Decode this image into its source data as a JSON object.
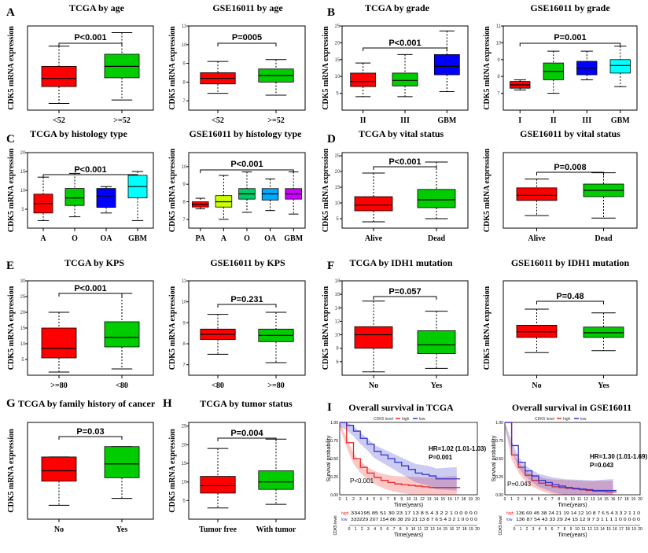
{
  "panel_letters": [
    "A",
    "B",
    "C",
    "D",
    "E",
    "F",
    "G",
    "H",
    "I"
  ],
  "ylabel": "CDK5 mRNA expression",
  "chart_data": [
    {
      "type": "boxplot",
      "title": "TCGA by age",
      "p": "P<0.001",
      "categories": [
        "<52",
        ">=52"
      ],
      "colors": [
        "#ff0000",
        "#00cc00"
      ],
      "boxes": [
        [
          8,
          9.2,
          11
        ],
        [
          9.3,
          11,
          12.8
        ]
      ],
      "whiskers": [
        [
          5.5,
          14
        ],
        [
          6,
          16
        ]
      ]
    },
    {
      "type": "boxplot",
      "title": "GSE16011 by age",
      "p": "P=0005",
      "categories": [
        "<52",
        ">=52"
      ],
      "colors": [
        "#ff0000",
        "#00cc00"
      ],
      "boxes": [
        [
          7.9,
          8.2,
          8.5
        ],
        [
          8,
          8.35,
          8.7
        ]
      ],
      "whiskers": [
        [
          7.4,
          9.1
        ],
        [
          7.3,
          9.2
        ]
      ],
      "ylim": [
        6.5,
        11
      ],
      "yticks": [
        7,
        8,
        9,
        10,
        11
      ]
    },
    {
      "type": "boxplot",
      "title": "TCGA by grade",
      "p": "P<0.001",
      "categories": [
        "II",
        "III",
        "GBM"
      ],
      "colors": [
        "#ff0000",
        "#00cc00",
        "#0000ff"
      ],
      "boxes": [
        [
          7,
          8.5,
          11
        ],
        [
          7.2,
          8.8,
          11
        ],
        [
          10.5,
          13,
          16.5
        ]
      ],
      "whiskers": [
        [
          4,
          14
        ],
        [
          4,
          16.5
        ],
        [
          5.5,
          23.5
        ]
      ],
      "ylim": [
        0,
        25
      ],
      "yticks": [
        5,
        10,
        15,
        20,
        25
      ]
    },
    {
      "type": "boxplot",
      "title": "GSE16011 by grade",
      "p": "P=0.001",
      "categories": [
        "I",
        "II",
        "III",
        "GBM"
      ],
      "colors": [
        "#ff0000",
        "#00cc00",
        "#0000ff",
        "#00ffff"
      ],
      "boxes": [
        [
          7.3,
          7.5,
          7.7
        ],
        [
          7.8,
          8.3,
          8.8
        ],
        [
          8.1,
          8.5,
          8.9
        ],
        [
          8.2,
          8.65,
          9
        ]
      ],
      "whiskers": [
        [
          7.2,
          7.8
        ],
        [
          7,
          9.5
        ],
        [
          7.8,
          9.5
        ],
        [
          7.4,
          9.8
        ]
      ],
      "ylim": [
        6,
        11
      ],
      "yticks": [
        7,
        8,
        9,
        10,
        11
      ]
    },
    {
      "type": "boxplot",
      "title": "TCGA by histology type",
      "p": "P<0.001",
      "categories": [
        "A",
        "O",
        "OA",
        "GBM"
      ],
      "colors": [
        "#ff0000",
        "#00cc00",
        "#0000ff",
        "#00ffff"
      ],
      "boxes": [
        [
          4,
          6.5,
          9
        ],
        [
          6,
          8,
          10.5
        ],
        [
          5.5,
          8.5,
          10.5
        ],
        [
          8,
          11,
          14
        ]
      ],
      "whiskers": [
        [
          2,
          13.5
        ],
        [
          3,
          14.5
        ],
        [
          4,
          11
        ],
        [
          2,
          15
        ]
      ],
      "ylim": [
        0,
        20
      ],
      "yticks": [
        5,
        10,
        15,
        20
      ]
    },
    {
      "type": "boxplot",
      "title": "GSE16011 by histology type",
      "p": "P<0.001",
      "categories": [
        "PA",
        "A",
        "O",
        "OA",
        "GBM"
      ],
      "colors": [
        "#ff0000",
        "#ccff00",
        "#00cc66",
        "#00aaff",
        "#cc00ff"
      ],
      "boxes": [
        [
          7.7,
          7.85,
          8
        ],
        [
          7.7,
          8,
          8.35
        ],
        [
          8.15,
          8.45,
          8.75
        ],
        [
          8.1,
          8.45,
          8.75
        ],
        [
          8.15,
          8.45,
          8.75
        ]
      ],
      "whiskers": [
        [
          7.6,
          8.2
        ],
        [
          7,
          9.5
        ],
        [
          7.4,
          9.7
        ],
        [
          7.5,
          9.3
        ],
        [
          7.3,
          9.7
        ]
      ],
      "ylim": [
        6.5,
        10.8
      ],
      "yticks": [
        7,
        8,
        9,
        10
      ]
    },
    {
      "type": "boxplot",
      "title": "TCGA by vital status",
      "p": "P<0.001",
      "categories": [
        "Alive",
        "Dead"
      ],
      "colors": [
        "#ff0000",
        "#00cc00"
      ],
      "boxes": [
        [
          7.5,
          9.3,
          12
        ],
        [
          8.5,
          11,
          14.3
        ]
      ],
      "whiskers": [
        [
          4,
          19.5
        ],
        [
          5,
          23
        ]
      ],
      "ylim": [
        2,
        26
      ],
      "yticks": [
        5,
        10,
        15,
        20,
        25
      ]
    },
    {
      "type": "boxplot",
      "title": "GSE16011 by vital status",
      "p": "P=0.008",
      "categories": [
        "Alive",
        "Dead"
      ],
      "colors": [
        "#ff0000",
        "#00cc00"
      ],
      "boxes": [
        [
          8.1,
          8.3,
          8.6
        ],
        [
          8.25,
          8.5,
          8.75
        ]
      ],
      "whiskers": [
        [
          7.5,
          8.95
        ],
        [
          7.4,
          9.2
        ]
      ],
      "ylim": [
        7,
        10
      ],
      "yticks": []
    },
    {
      "type": "boxplot",
      "title": "TCGA by KPS",
      "p": "P<0.001",
      "categories": [
        ">=80",
        "<80"
      ],
      "colors": [
        "#ff0000",
        "#00cc00"
      ],
      "boxes": [
        [
          5.5,
          8.5,
          15
        ],
        [
          9,
          12,
          17
        ]
      ],
      "whiskers": [
        [
          1,
          20
        ],
        [
          2,
          26
        ]
      ],
      "ylim": [
        0,
        30
      ],
      "yticks": [
        5,
        10,
        15,
        20,
        25,
        30
      ]
    },
    {
      "type": "boxplot",
      "title": "GSE16011 by KPS",
      "p": "P=0.231",
      "categories": [
        "<80",
        ">=80"
      ],
      "colors": [
        "#ff0000",
        "#00cc00"
      ],
      "boxes": [
        [
          8.2,
          8.45,
          8.7
        ],
        [
          8.1,
          8.4,
          8.7
        ]
      ],
      "whiskers": [
        [
          7.5,
          9.4
        ],
        [
          7.1,
          9.5
        ]
      ],
      "ylim": [
        6.5,
        11
      ],
      "yticks": [
        7,
        8,
        9,
        10,
        11
      ]
    },
    {
      "type": "boxplot",
      "title": "TCGA by IDH1 mutation",
      "p": "P=0.057",
      "categories": [
        "No",
        "Yes"
      ],
      "colors": [
        "#ff0000",
        "#00cc00"
      ],
      "boxes": [
        [
          8,
          10,
          11.2
        ],
        [
          7.2,
          8.5,
          10.6
        ]
      ],
      "whiskers": [
        [
          4.5,
          15
        ],
        [
          5,
          13.5
        ]
      ],
      "ylim": [
        4,
        18
      ],
      "yticks": [
        6,
        8,
        10,
        12,
        14,
        16,
        18
      ]
    },
    {
      "type": "boxplot",
      "title": "GSE16011 by IDH1 mutation",
      "p": "P=0.48",
      "categories": [
        "No",
        "Yes"
      ],
      "colors": [
        "#ff0000",
        "#00cc00"
      ],
      "boxes": [
        [
          8,
          8.3,
          8.65
        ],
        [
          8,
          8.25,
          8.55
        ]
      ],
      "whiskers": [
        [
          7.2,
          9.5
        ],
        [
          7.3,
          9.3
        ]
      ],
      "ylim": [
        6,
        11
      ],
      "yticks": []
    },
    {
      "type": "boxplot",
      "title": "TCGA by family history of cancer",
      "p": "P=0.03",
      "categories": [
        "No",
        "Yes"
      ],
      "colors": [
        "#ff0000",
        "#00cc00"
      ],
      "boxes": [
        [
          7.5,
          9,
          11
        ],
        [
          8,
          10,
          12.5
        ]
      ],
      "whiskers": [
        [
          4,
          11
        ],
        [
          5,
          12.5
        ]
      ],
      "ylim": [
        2,
        16
      ],
      "yticks": []
    },
    {
      "type": "boxplot",
      "title": "TCGA by tumor status",
      "p": "P=0.004",
      "categories": [
        "Tumor free",
        "With tumor"
      ],
      "colors": [
        "#ff0000",
        "#00cc00"
      ],
      "boxes": [
        [
          7,
          9,
          11.5
        ],
        [
          8,
          10,
          13
        ]
      ],
      "whiskers": [
        [
          3,
          19
        ],
        [
          4,
          21.5
        ]
      ],
      "ylim": [
        0,
        26
      ],
      "yticks": [
        5,
        10,
        15,
        20,
        25
      ]
    },
    {
      "type": "survival",
      "title": "Overall survival in TCGA",
      "hr": "HR=1.02 (1.01-1.03)",
      "p": "P=0.001",
      "pinner": "P<0.001",
      "legend_label": "CDK5 level",
      "legend_items": [
        "high",
        "low"
      ],
      "colors": [
        "#ee2222",
        "#3333cc"
      ],
      "xlabel": "Time(years)",
      "ylabel": "Survival probability",
      "xticks": [
        "0",
        "1",
        "2",
        "3",
        "4",
        "5",
        "6",
        "7",
        "8",
        "9",
        "10",
        "11",
        "12",
        "13",
        "14",
        "15",
        "16",
        "17",
        "18",
        "19",
        "20"
      ],
      "yticks": [
        "0.00",
        "0.25",
        "0.50",
        "0.75",
        "1.00"
      ],
      "time": [
        0,
        1,
        2,
        3,
        4,
        5,
        6,
        7,
        8,
        9,
        10,
        11,
        12,
        13,
        14,
        15,
        16,
        17,
        18,
        19,
        20
      ],
      "series": [
        {
          "name": "high",
          "values": [
            1,
            0.72,
            0.5,
            0.38,
            0.3,
            0.24,
            0.2,
            0.17,
            0.15,
            0.14,
            0.13,
            0.12,
            0.11,
            0.1,
            0.1,
            0.1,
            0.1,
            0.1
          ]
        },
        {
          "name": "low",
          "values": [
            1,
            0.96,
            0.88,
            0.78,
            0.7,
            0.6,
            0.55,
            0.5,
            0.45,
            0.4,
            0.35,
            0.3,
            0.28,
            0.26,
            0.22,
            0.22,
            0.22,
            0.22
          ]
        }
      ],
      "risk_label": "CDK5 level",
      "risk_rows": [
        {
          "name": "high",
          "text": "334195 85 51 30 23 17 13 8 5 4 3 2 2 1 0 0 0 0 0"
        },
        {
          "name": "low",
          "text": "333229 207 154 86 38 29 21 13 8 7 6 5 4 3 2 1 0 0 0 0"
        }
      ]
    },
    {
      "type": "survival",
      "title": "Overall survival in GSE16011",
      "hr": "HR=1.30 (1.01-1.69)",
      "p": "P=0.043",
      "pinner": "P=0.043",
      "legend_label": "CDK5 level",
      "legend_items": [
        "high",
        "low"
      ],
      "colors": [
        "#ee2222",
        "#3333cc"
      ],
      "xlabel": "Time(years)",
      "ylabel": "Survival probability",
      "xticks": [
        "0",
        "1",
        "2",
        "3",
        "4",
        "5",
        "6",
        "7",
        "8",
        "9",
        "10",
        "11",
        "12",
        "13",
        "14",
        "15",
        "16",
        "17",
        "18",
        "19",
        "20"
      ],
      "yticks": [
        "0.00",
        "0.25",
        "0.50",
        "0.75",
        "1.00"
      ],
      "time": [
        0,
        1,
        2,
        3,
        4,
        5,
        6,
        7,
        8,
        9,
        10,
        11,
        12,
        13,
        14,
        15,
        16,
        17,
        18,
        19,
        20
      ],
      "series": [
        {
          "name": "high",
          "values": [
            1,
            0.55,
            0.38,
            0.27,
            0.2,
            0.16,
            0.13,
            0.11,
            0.1,
            0.09,
            0.08,
            0.07,
            0.06,
            0.05,
            0.05,
            0.04,
            0.04
          ]
        },
        {
          "name": "low",
          "values": [
            1,
            0.68,
            0.45,
            0.33,
            0.26,
            0.2,
            0.17,
            0.14,
            0.12,
            0.1,
            0.09,
            0.08,
            0.07,
            0.06,
            0.06,
            0.06,
            0.06
          ]
        }
      ],
      "risk_label": "CDK5 level",
      "risk_rows": [
        {
          "name": "high",
          "text": "136 69 45 38 24 21 19 14 12 10 8 7 6 5 4 3 3 2 1 1 0"
        },
        {
          "name": "low",
          "text": "136 87 54 43 33 29 24 15 12 9 7 3 1 1 1 1 0 0 0 0 0"
        }
      ]
    }
  ]
}
